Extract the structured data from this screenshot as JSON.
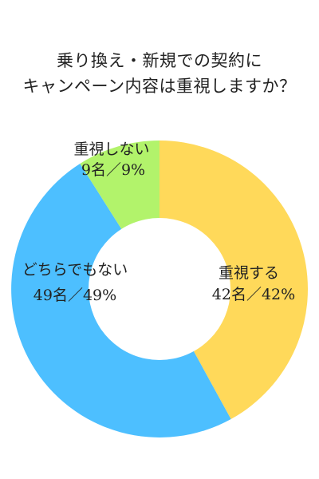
{
  "title": {
    "line1": "乗り換え・新規での契約に",
    "line2": "キャンペーン内容は重視しますか？"
  },
  "colors": {
    "slice_important": "#FFD95A",
    "slice_neutral": "#4DBFFF",
    "slice_not_important": "#B2F36B",
    "hole": "#FFFFFF"
  },
  "chart_data": {
    "type": "pie",
    "donut": true,
    "title": "乗り換え・新規での契約にキャンペーン内容は重視しますか？",
    "slices": [
      {
        "name": "重視する",
        "count_label": "42名／42%",
        "count": 42,
        "percent": 42,
        "color": "#FFD95A"
      },
      {
        "name": "どちらでもない",
        "count_label": "49名／49%",
        "count": 49,
        "percent": 49,
        "color": "#4DBFFF"
      },
      {
        "name": "重視しない",
        "count_label": "9名／9%",
        "count": 9,
        "percent": 9,
        "color": "#B2F36B"
      }
    ],
    "total": 100,
    "start": "top",
    "direction": "clockwise"
  }
}
